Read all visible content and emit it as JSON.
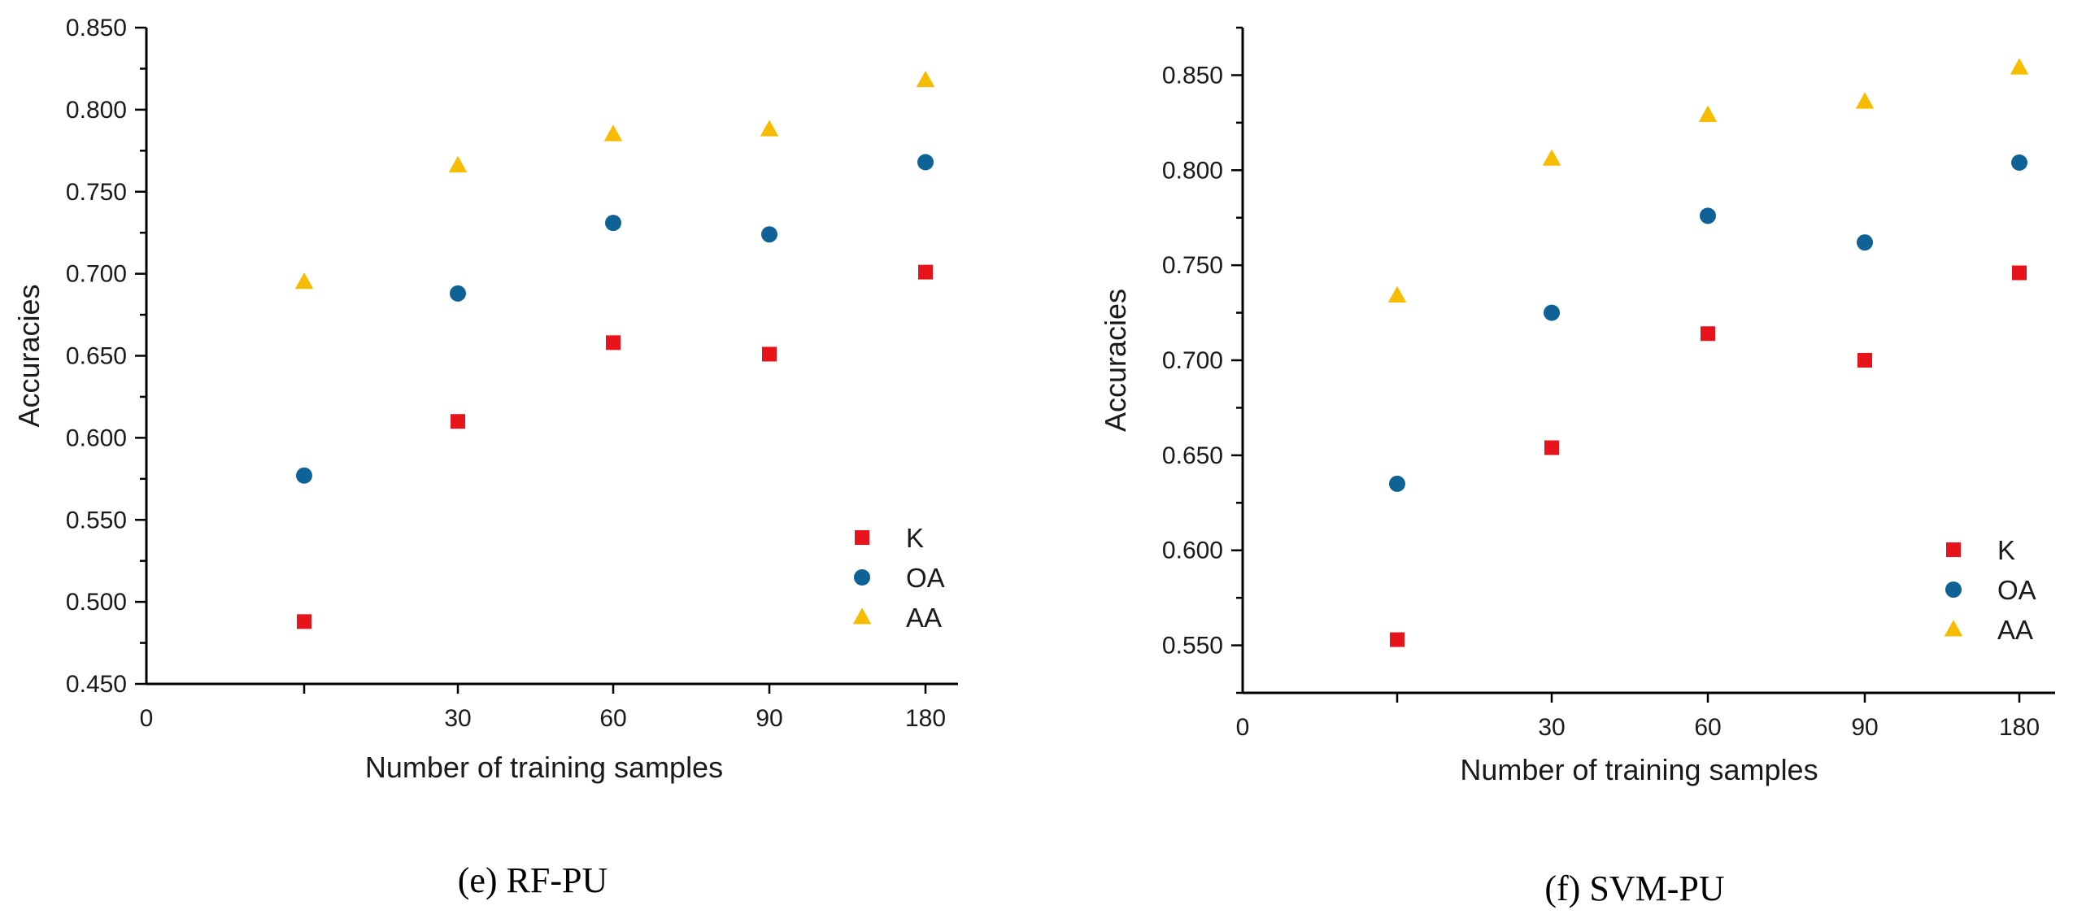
{
  "chart_data": [
    {
      "type": "scatter",
      "caption": "(e) RF-PU",
      "xlabel": "Number of training samples",
      "ylabel": "Accuracies",
      "xtick_labels": [
        "0",
        "",
        "30",
        "60",
        "90",
        "180"
      ],
      "categories": [
        "",
        "30",
        "60",
        "90",
        "180"
      ],
      "ylim": [
        0.45,
        0.85
      ],
      "yticks": [
        "0.450",
        "0.500",
        "0.550",
        "0.600",
        "0.650",
        "0.700",
        "0.750",
        "0.800",
        "0.850"
      ],
      "series": [
        {
          "name": "K",
          "marker": "square",
          "color": "#e8141b",
          "values": [
            0.488,
            0.61,
            0.658,
            0.651,
            0.701
          ]
        },
        {
          "name": "OA",
          "marker": "circle",
          "color": "#0f6296",
          "values": [
            0.577,
            0.688,
            0.731,
            0.724,
            0.768
          ]
        },
        {
          "name": "AA",
          "marker": "triangle",
          "color": "#f5bc00",
          "values": [
            0.695,
            0.766,
            0.785,
            0.788,
            0.818
          ]
        }
      ],
      "legend_position": "bottom-right"
    },
    {
      "type": "scatter",
      "caption": "(f) SVM-PU",
      "xlabel": "Number of training samples",
      "ylabel": "Accuracies",
      "xtick_labels": [
        "0",
        "",
        "30",
        "60",
        "90",
        "180"
      ],
      "categories": [
        "",
        "30",
        "60",
        "90",
        "180"
      ],
      "ylim": [
        0.525,
        0.875
      ],
      "yticks": [
        "0.550",
        "0.600",
        "0.650",
        "0.700",
        "0.750",
        "0.800",
        "0.850"
      ],
      "series": [
        {
          "name": "K",
          "marker": "square",
          "color": "#e8141b",
          "values": [
            0.553,
            0.654,
            0.714,
            0.7,
            0.746
          ]
        },
        {
          "name": "OA",
          "marker": "circle",
          "color": "#0f6296",
          "values": [
            0.635,
            0.725,
            0.776,
            0.762,
            0.804
          ]
        },
        {
          "name": "AA",
          "marker": "triangle",
          "color": "#f5bc00",
          "values": [
            0.734,
            0.806,
            0.829,
            0.836,
            0.854
          ]
        }
      ],
      "legend_position": "bottom-right"
    }
  ]
}
